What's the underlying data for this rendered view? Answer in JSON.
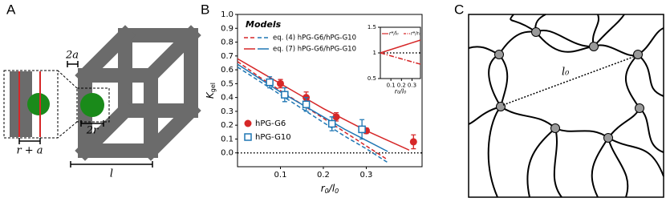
{
  "panel_labels": [
    "A",
    "B",
    "C"
  ],
  "panel_a": {
    "two_a": "2a",
    "two_r": "2r",
    "r_plus_a": "r + a",
    "l": "l"
  },
  "panel_c": {
    "l0": "l₀"
  },
  "chart_data": [
    {
      "type": "line",
      "x_label": {
        "main": "r",
        "sub1": "0",
        "slash": "/",
        "main2": "l",
        "sub2": "0"
      },
      "y_label": {
        "main": "K",
        "sub": "gel"
      },
      "xlim": [
        0,
        0.43
      ],
      "ylim": [
        -0.1,
        1.0
      ],
      "xticks": [
        0.1,
        0.2,
        0.3
      ],
      "yticks": [
        {
          "value": 0,
          "label": "0.0"
        },
        0.1,
        0.2,
        0.3,
        0.4,
        0.5,
        0.6,
        0.7,
        0.8,
        0.9,
        {
          "value": 1,
          "label": "1.0"
        }
      ],
      "hline": 0,
      "legend_title": "Models",
      "models": [
        {
          "name": "eq. (4) hPG-G6/hPG-G10",
          "dash": "dashed",
          "x": [
            0,
            0.05,
            0.1,
            0.15,
            0.2,
            0.25,
            0.3,
            0.35,
            0.4
          ],
          "series": [
            {
              "color": "#d62728",
              "values": [
                0.66,
                0.55,
                0.45,
                0.35,
                0.25,
                0.15,
                0.05,
                -0.05,
                null
              ]
            },
            {
              "color": "#1f77b4",
              "values": [
                0.62,
                0.52,
                0.42,
                0.32,
                0.22,
                0.12,
                0.03,
                -0.07,
                null
              ]
            }
          ]
        },
        {
          "name": "eq. (7) hPG-G6/hPG-G10",
          "dash": "solid",
          "x": [
            0,
            0.05,
            0.1,
            0.15,
            0.2,
            0.25,
            0.3,
            0.35,
            0.4
          ],
          "series": [
            {
              "color": "#d62728",
              "values": [
                0.68,
                0.59,
                0.5,
                0.41,
                0.32,
                0.24,
                0.16,
                0.09,
                0.02
              ]
            },
            {
              "color": "#1f77b4",
              "values": [
                0.64,
                0.54,
                0.44,
                0.35,
                0.26,
                0.17,
                0.09,
                0.01,
                null
              ]
            }
          ]
        }
      ],
      "series": [
        {
          "name": "hPG-G6",
          "color": "#d62728",
          "marker": "circle",
          "x": [
            0.1,
            0.16,
            0.23,
            0.3,
            0.41
          ],
          "values": [
            0.5,
            0.4,
            0.26,
            0.16,
            0.08
          ],
          "errors": [
            0.03,
            0.04,
            0.03,
            0.02,
            0.05
          ]
        },
        {
          "name": "hPG-G10",
          "color": "#1f77b4",
          "marker": "square",
          "x": [
            0.075,
            0.11,
            0.16,
            0.22,
            0.29
          ],
          "values": [
            0.51,
            0.42,
            0.35,
            0.21,
            0.17
          ],
          "errors": [
            0.04,
            0.05,
            0.05,
            0.05,
            0.07
          ]
        }
      ]
    },
    {
      "type": "line",
      "x_label": "r₀/l₀",
      "xlim": [
        0,
        0.38
      ],
      "ylim": [
        0.5,
        1.5
      ],
      "xticks": [
        0.1,
        0.2,
        0.3
      ],
      "yticks": [
        0.5,
        1,
        1.5
      ],
      "hline": 1,
      "series": [
        {
          "name": "r*/l₀",
          "color": "#d62728",
          "dash": "solid",
          "x": [
            0,
            0.38
          ],
          "values": [
            1.0,
            1.25
          ]
        },
        {
          "name": "r*/r₀",
          "color": "#d62728",
          "dash": "dashdot",
          "x": [
            0,
            0.38
          ],
          "values": [
            1.0,
            0.78
          ]
        }
      ]
    }
  ]
}
